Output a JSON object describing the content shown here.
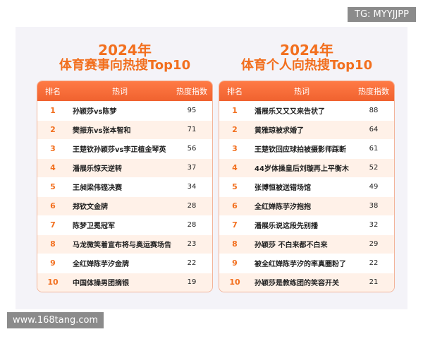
{
  "watermark_top": "TG: MYYJJPP",
  "watermark_bottom": "www.168tang.com",
  "left": {
    "year": "2024年",
    "title": "体育赛事向热搜Top10",
    "headers": [
      "排名",
      "热词",
      "热度指数"
    ],
    "rows": [
      {
        "rank": "1",
        "word": "孙颖莎vs陈梦",
        "heat": "95"
      },
      {
        "rank": "2",
        "word": "樊振东vs张本智和",
        "heat": "71"
      },
      {
        "rank": "3",
        "word": "王楚钦孙颖莎vs李正植金琴英",
        "heat": "56"
      },
      {
        "rank": "4",
        "word": "潘展乐惊天逆转",
        "heat": "37"
      },
      {
        "rank": "5",
        "word": "王昶梁伟铿决赛",
        "heat": "34"
      },
      {
        "rank": "6",
        "word": "郑钦文金牌",
        "heat": "28"
      },
      {
        "rank": "7",
        "word": "陈梦卫冕冠军",
        "heat": "28"
      },
      {
        "rank": "8",
        "word": "马龙微笑着宣布将与奥运赛场告别",
        "heat": "23"
      },
      {
        "rank": "9",
        "word": "全红婵陈芋汐金牌",
        "heat": "22"
      },
      {
        "rank": "10",
        "word": "中国体操男团摘银",
        "heat": "19"
      }
    ]
  },
  "right": {
    "year": "2024年",
    "title": "体育个人向热搜Top10",
    "headers": [
      "排名",
      "热词",
      "热度指数"
    ],
    "rows": [
      {
        "rank": "1",
        "word": "潘展乐又又又来告状了",
        "heat": "88"
      },
      {
        "rank": "2",
        "word": "黄雅琼被求婚了",
        "heat": "64"
      },
      {
        "rank": "3",
        "word": "王楚钦回应球拍被摄影师踩断",
        "heat": "61"
      },
      {
        "rank": "4",
        "word": "44岁体操皇后刘璇再上平衡木",
        "heat": "52"
      },
      {
        "rank": "5",
        "word": "张博恒被送错场馆",
        "heat": "49"
      },
      {
        "rank": "6",
        "word": "全红婵陈芋汐抱抱",
        "heat": "38"
      },
      {
        "rank": "7",
        "word": "潘展乐说这段先别播",
        "heat": "32"
      },
      {
        "rank": "8",
        "word": "孙颖莎 不白来都不白来",
        "heat": "29"
      },
      {
        "rank": "9",
        "word": "被全红婵陈芋汐的率真圈粉了",
        "heat": "22"
      },
      {
        "rank": "10",
        "word": "孙颖莎是教练团的笑容开关",
        "heat": "21"
      }
    ]
  }
}
